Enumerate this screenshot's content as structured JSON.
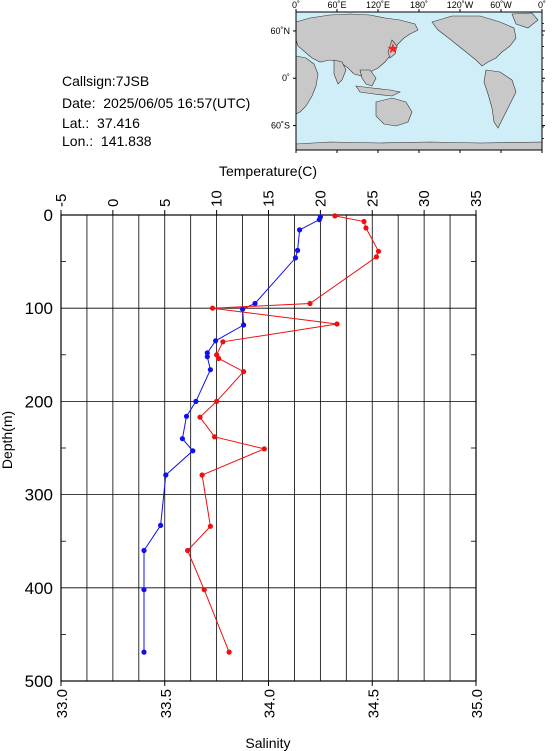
{
  "station": {
    "callsign_label": "Callsign:",
    "callsign": "7JSB",
    "date_label": "Date:",
    "date": "2025/06/05 16:57(UTC)",
    "lat_label": "Lat.:",
    "lat": "37.416",
    "lon_label": "Lon.:",
    "lon": "141.838"
  },
  "map": {
    "top_ticks": [
      "0˚",
      "60˚E",
      "120˚E",
      "180˚",
      "120˚W",
      "60˚W",
      "0˚"
    ],
    "lat_ticks": [
      "60˚N",
      "0˚",
      "60˚S"
    ],
    "ocean_color": "#cfeef7",
    "land_color": "#c8c8c8",
    "marker_color": "#ff2020",
    "marker_icon": "star-icon",
    "marker_lat": 37.416,
    "marker_lon": 141.838
  },
  "chart_data": {
    "type": "line",
    "title": "",
    "top_axis_label": "Temperature(C)",
    "bottom_axis_label": "Salinity",
    "left_axis_label": "Depth(m)",
    "temperature_range": [
      -5,
      35
    ],
    "temperature_ticks": [
      "-5",
      "0",
      "5",
      "10",
      "15",
      "20",
      "25",
      "30",
      "35"
    ],
    "salinity_range": [
      33.0,
      35.0
    ],
    "salinity_ticks": [
      "33.0",
      "33.5",
      "34.0",
      "34.5",
      "35.0"
    ],
    "depth_range": [
      0,
      500
    ],
    "depth_ticks": [
      "0",
      "100",
      "200",
      "300",
      "400",
      "500"
    ],
    "grid": true,
    "series": [
      {
        "color": "#1010ee",
        "points": [
          {
            "value": 20.0,
            "depth": 2
          },
          {
            "value": 19.9,
            "depth": 5
          },
          {
            "value": 18.0,
            "depth": 16
          },
          {
            "value": 17.8,
            "depth": 38
          },
          {
            "value": 17.6,
            "depth": 46
          },
          {
            "value": 13.7,
            "depth": 95
          },
          {
            "value": 12.5,
            "depth": 101
          },
          {
            "value": 12.6,
            "depth": 118
          },
          {
            "value": 9.9,
            "depth": 135
          },
          {
            "value": 9.1,
            "depth": 148
          },
          {
            "value": 9.1,
            "depth": 152
          },
          {
            "value": 9.4,
            "depth": 166
          },
          {
            "value": 8.0,
            "depth": 200
          },
          {
            "value": 7.1,
            "depth": 216
          },
          {
            "value": 6.7,
            "depth": 240
          },
          {
            "value": 7.7,
            "depth": 253
          },
          {
            "value": 5.1,
            "depth": 279
          },
          {
            "value": 4.6,
            "depth": 333
          },
          {
            "value": 3.0,
            "depth": 360
          },
          {
            "value": 3.0,
            "depth": 402
          },
          {
            "value": 3.0,
            "depth": 469
          }
        ]
      },
      {
        "color": "#ee1010",
        "points": [
          {
            "value": 34.32,
            "depth": 1
          },
          {
            "value": 34.46,
            "depth": 7
          },
          {
            "value": 34.47,
            "depth": 14
          },
          {
            "value": 34.53,
            "depth": 39
          },
          {
            "value": 34.52,
            "depth": 45
          },
          {
            "value": 34.2,
            "depth": 95
          },
          {
            "value": 33.73,
            "depth": 100
          },
          {
            "value": 34.33,
            "depth": 117
          },
          {
            "value": 33.78,
            "depth": 136
          },
          {
            "value": 33.75,
            "depth": 150
          },
          {
            "value": 33.76,
            "depth": 154
          },
          {
            "value": 33.88,
            "depth": 168
          },
          {
            "value": 33.75,
            "depth": 200
          },
          {
            "value": 33.67,
            "depth": 217
          },
          {
            "value": 33.74,
            "depth": 238
          },
          {
            "value": 33.98,
            "depth": 251
          },
          {
            "value": 33.68,
            "depth": 279
          },
          {
            "value": 33.72,
            "depth": 334
          },
          {
            "value": 33.61,
            "depth": 360
          },
          {
            "value": 33.69,
            "depth": 402
          },
          {
            "value": 33.81,
            "depth": 469
          }
        ]
      }
    ]
  }
}
